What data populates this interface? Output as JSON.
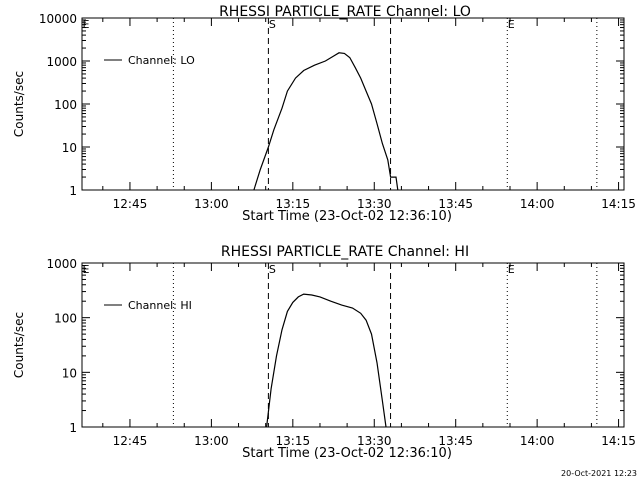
{
  "footer_timestamp": "20-Oct-2021 12:23",
  "chart_data": [
    {
      "type": "line",
      "title": "RHESSI PARTICLE_RATE Channel: LO",
      "xlabel": "Start Time (23-Oct-02 12:36:10)",
      "ylabel": "Counts/sec",
      "yscale": "log",
      "ylim": [
        1,
        10000
      ],
      "xlim": [
        "12:36:10",
        "14:16:00"
      ],
      "x_ticks": [
        "12:45",
        "13:00",
        "13:15",
        "13:30",
        "13:45",
        "14:00",
        "14:15"
      ],
      "y_ticks": [
        "1",
        "10",
        "100",
        "1000",
        "10000"
      ],
      "legend": {
        "position": "top-left"
      },
      "markers": [
        {
          "label": "E",
          "time": "12:36:10",
          "style": "dotted"
        },
        {
          "label": "",
          "time": "12:53:00",
          "style": "dotted"
        },
        {
          "label": "S",
          "time": "13:10:30",
          "style": "dashed"
        },
        {
          "label": "",
          "time": "13:33:00",
          "style": "dashed"
        },
        {
          "label": "E",
          "time": "13:54:30",
          "style": "dotted"
        },
        {
          "label": "",
          "time": "14:11:00",
          "style": "dotted"
        }
      ],
      "series": [
        {
          "name": "Channel: LO",
          "points": [
            [
              "13:07:50",
              1
            ],
            [
              "13:09:00",
              3
            ],
            [
              "13:10:30",
              10
            ],
            [
              "13:11:30",
              25
            ],
            [
              "13:13:00",
              80
            ],
            [
              "13:14:00",
              200
            ],
            [
              "13:15:30",
              400
            ],
            [
              "13:17:00",
              600
            ],
            [
              "13:19:00",
              800
            ],
            [
              "13:21:00",
              1000
            ],
            [
              "13:22:30",
              1300
            ],
            [
              "13:23:30",
              1550
            ],
            [
              "13:24:30",
              1500
            ],
            [
              "13:25:30",
              1200
            ],
            [
              "13:26:30",
              700
            ],
            [
              "13:27:30",
              400
            ],
            [
              "13:28:30",
              200
            ],
            [
              "13:29:30",
              100
            ],
            [
              "13:30:30",
              35
            ],
            [
              "13:31:30",
              12
            ],
            [
              "13:32:30",
              5
            ],
            [
              "13:33:00",
              2
            ],
            [
              "13:34:00",
              2
            ],
            [
              "13:34:20",
              1
            ]
          ]
        }
      ]
    },
    {
      "type": "line",
      "title": "RHESSI PARTICLE_RATE Channel: HI",
      "xlabel": "Start Time (23-Oct-02 12:36:10)",
      "ylabel": "Counts/sec",
      "yscale": "log",
      "ylim": [
        1,
        1000
      ],
      "xlim": [
        "12:36:10",
        "14:16:00"
      ],
      "x_ticks": [
        "12:45",
        "13:00",
        "13:15",
        "13:30",
        "13:45",
        "14:00",
        "14:15"
      ],
      "y_ticks": [
        "1",
        "10",
        "100",
        "1000"
      ],
      "legend": {
        "position": "top-left"
      },
      "markers": [
        {
          "label": "E",
          "time": "12:36:10",
          "style": "dotted"
        },
        {
          "label": "",
          "time": "12:53:00",
          "style": "dotted"
        },
        {
          "label": "S",
          "time": "13:10:30",
          "style": "dashed"
        },
        {
          "label": "",
          "time": "13:33:00",
          "style": "dashed"
        },
        {
          "label": "E",
          "time": "13:54:30",
          "style": "dotted"
        },
        {
          "label": "",
          "time": "14:11:00",
          "style": "dotted"
        }
      ],
      "series": [
        {
          "name": "Channel: HI",
          "points": [
            [
              "13:10:10",
              1
            ],
            [
              "13:11:00",
              5
            ],
            [
              "13:12:00",
              20
            ],
            [
              "13:13:00",
              60
            ],
            [
              "13:14:00",
              130
            ],
            [
              "13:15:00",
              190
            ],
            [
              "13:16:00",
              240
            ],
            [
              "13:17:00",
              270
            ],
            [
              "13:18:30",
              260
            ],
            [
              "13:20:00",
              240
            ],
            [
              "13:22:00",
              200
            ],
            [
              "13:24:00",
              170
            ],
            [
              "13:26:00",
              150
            ],
            [
              "13:27:30",
              120
            ],
            [
              "13:28:30",
              90
            ],
            [
              "13:29:30",
              50
            ],
            [
              "13:30:30",
              15
            ],
            [
              "13:31:30",
              3
            ],
            [
              "13:32:10",
              1
            ]
          ]
        }
      ]
    }
  ]
}
